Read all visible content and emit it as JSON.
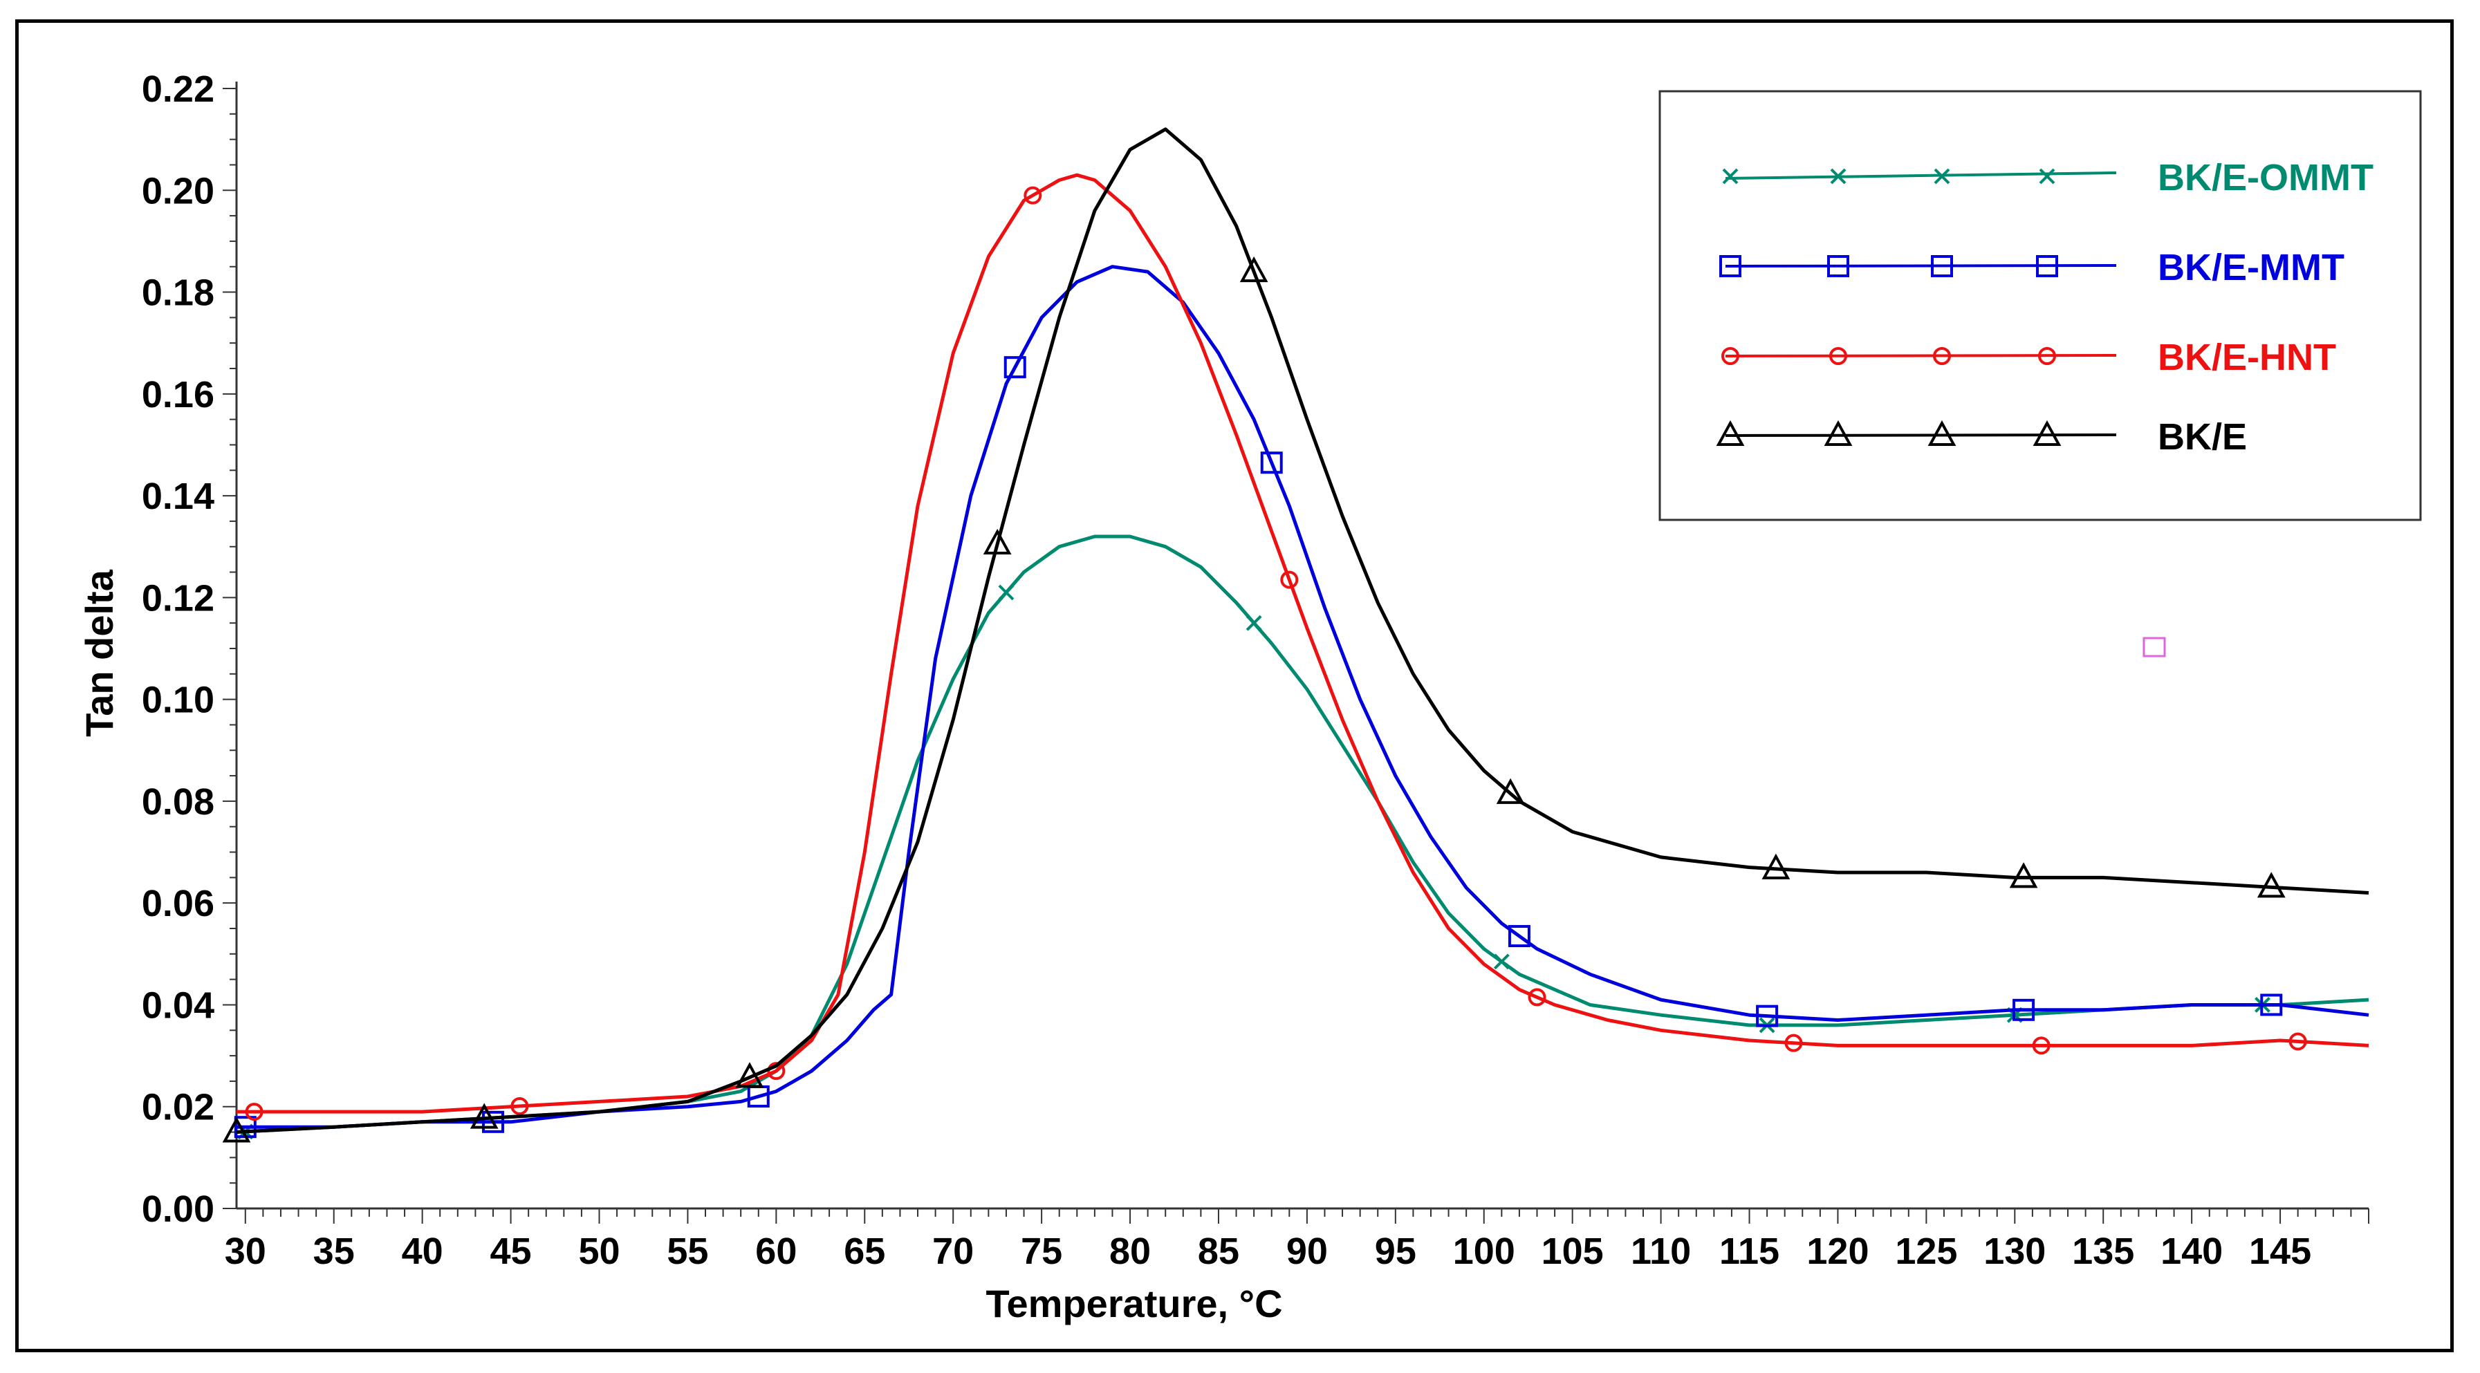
{
  "chart_data": {
    "type": "line",
    "title": "",
    "xlabel": "Temperature, °C",
    "ylabel": "Tan delta",
    "xlim": [
      29.5,
      150
    ],
    "ylim": [
      0.0,
      0.22
    ],
    "xticks": [
      30,
      35,
      40,
      45,
      50,
      55,
      60,
      65,
      70,
      75,
      80,
      85,
      90,
      95,
      100,
      105,
      110,
      115,
      120,
      125,
      130,
      135,
      140,
      145
    ],
    "yticks": [
      "0.00",
      "0.02",
      "0.04",
      "0.06",
      "0.08",
      "0.10",
      "0.12",
      "0.14",
      "0.16",
      "0.18",
      "0.20",
      "0.22"
    ],
    "legend_position": "top-right",
    "series": [
      {
        "name": "BK/E-OMMT",
        "color": "#008a70",
        "marker": "x",
        "x": [
          29.5,
          35,
          40,
          45,
          50,
          55,
          58,
          60,
          62,
          64,
          66,
          68,
          70,
          72,
          74,
          76,
          78,
          80,
          82,
          84,
          86,
          88,
          90,
          92,
          94,
          96,
          98,
          100,
          102,
          104,
          106,
          110,
          115,
          120,
          125,
          130,
          135,
          140,
          145,
          150
        ],
        "y": [
          0.015,
          0.016,
          0.017,
          0.018,
          0.019,
          0.021,
          0.023,
          0.027,
          0.034,
          0.048,
          0.068,
          0.088,
          0.104,
          0.117,
          0.125,
          0.13,
          0.132,
          0.132,
          0.13,
          0.126,
          0.119,
          0.111,
          0.102,
          0.091,
          0.08,
          0.068,
          0.058,
          0.051,
          0.046,
          0.043,
          0.04,
          0.038,
          0.036,
          0.036,
          0.037,
          0.038,
          0.039,
          0.04,
          0.04,
          0.041
        ],
        "markers_x": [
          30,
          73,
          87,
          101,
          116,
          130,
          144
        ]
      },
      {
        "name": "BK/E-MMT",
        "color": "#0000dd",
        "marker": "square",
        "x": [
          29.5,
          35,
          40,
          45,
          50,
          55,
          58,
          60,
          62,
          64,
          65.5,
          66.5,
          67.5,
          69,
          71,
          73,
          75,
          77,
          79,
          81,
          83,
          85,
          87,
          89,
          91,
          93,
          95,
          97,
          99,
          101,
          103,
          106,
          110,
          115,
          120,
          125,
          130,
          135,
          140,
          145,
          150
        ],
        "y": [
          0.016,
          0.016,
          0.017,
          0.017,
          0.019,
          0.02,
          0.021,
          0.023,
          0.027,
          0.033,
          0.039,
          0.042,
          0.07,
          0.108,
          0.14,
          0.162,
          0.175,
          0.182,
          0.185,
          0.184,
          0.178,
          0.168,
          0.155,
          0.138,
          0.118,
          0.1,
          0.085,
          0.073,
          0.063,
          0.056,
          0.051,
          0.046,
          0.041,
          0.038,
          0.037,
          0.038,
          0.039,
          0.039,
          0.04,
          0.04,
          0.038
        ],
        "markers_x": [
          30,
          44,
          59,
          73.5,
          88,
          102,
          116,
          130.5,
          144.5
        ]
      },
      {
        "name": "BK/E-HNT",
        "color": "#ee1111",
        "marker": "circle",
        "x": [
          29.5,
          35,
          40,
          45,
          50,
          55,
          58,
          60,
          62,
          63.5,
          65,
          66.5,
          68,
          70,
          72,
          74,
          76,
          77,
          78,
          80,
          82,
          84,
          86,
          88,
          90,
          92,
          94,
          96,
          98,
          100,
          102,
          104,
          107,
          110,
          115,
          120,
          125,
          130,
          135,
          140,
          145,
          150
        ],
        "y": [
          0.019,
          0.019,
          0.019,
          0.02,
          0.021,
          0.022,
          0.024,
          0.027,
          0.033,
          0.042,
          0.07,
          0.105,
          0.138,
          0.168,
          0.187,
          0.198,
          0.202,
          0.203,
          0.202,
          0.196,
          0.185,
          0.17,
          0.152,
          0.133,
          0.114,
          0.096,
          0.08,
          0.066,
          0.055,
          0.048,
          0.043,
          0.04,
          0.037,
          0.035,
          0.033,
          0.032,
          0.032,
          0.032,
          0.032,
          0.032,
          0.033,
          0.032
        ],
        "markers_x": [
          30.5,
          45.5,
          60,
          74.5,
          89,
          103,
          117.5,
          131.5,
          146
        ]
      },
      {
        "name": "BK/E",
        "color": "#000000",
        "marker": "triangle",
        "x": [
          29.5,
          35,
          40,
          45,
          50,
          55,
          58,
          60,
          62,
          64,
          66,
          68,
          70,
          72,
          74,
          76,
          78,
          80,
          82,
          84,
          86,
          88,
          90,
          92,
          94,
          96,
          98,
          100,
          102,
          105,
          110,
          115,
          120,
          125,
          130,
          135,
          140,
          145,
          150
        ],
        "y": [
          0.015,
          0.016,
          0.017,
          0.018,
          0.019,
          0.021,
          0.025,
          0.028,
          0.034,
          0.042,
          0.055,
          0.072,
          0.096,
          0.124,
          0.15,
          0.175,
          0.196,
          0.208,
          0.212,
          0.206,
          0.193,
          0.175,
          0.155,
          0.136,
          0.119,
          0.105,
          0.094,
          0.086,
          0.08,
          0.074,
          0.069,
          0.067,
          0.066,
          0.066,
          0.065,
          0.065,
          0.064,
          0.063,
          0.062
        ],
        "markers_x": [
          29.5,
          43.5,
          58.5,
          72.5,
          87,
          101.5,
          116.5,
          130.5,
          144.5
        ]
      }
    ]
  }
}
